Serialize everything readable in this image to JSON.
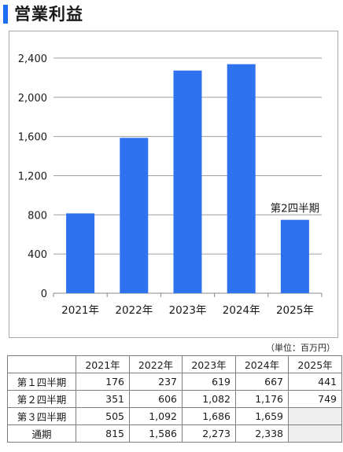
{
  "title": "営業利益",
  "unit_note": "（単位：百万円）",
  "chart_data": {
    "type": "bar",
    "categories": [
      "2021年",
      "2022年",
      "2023年",
      "2024年",
      "2025年"
    ],
    "values": [
      815,
      1586,
      2273,
      2338,
      749
    ],
    "ylim": [
      0,
      2600
    ],
    "yticks": [
      0,
      400,
      800,
      1200,
      1600,
      2000,
      2400
    ],
    "ytick_labels": [
      "0",
      "400",
      "800",
      "1,200",
      "1,600",
      "2,000",
      "2,400"
    ],
    "annotations": [
      {
        "category": "2025年",
        "text": "第2四半期"
      }
    ],
    "bar_color": "#2e72f0",
    "grid": true,
    "title": "",
    "xlabel": "",
    "ylabel": ""
  },
  "table": {
    "headers": [
      "",
      "2021年",
      "2022年",
      "2023年",
      "2024年",
      "2025年"
    ],
    "rows": [
      {
        "label": "第１四半期",
        "cells": [
          "176",
          "237",
          "619",
          "667",
          "441"
        ]
      },
      {
        "label": "第２四半期",
        "cells": [
          "351",
          "606",
          "1,082",
          "1,176",
          "749"
        ]
      },
      {
        "label": "第３四半期",
        "cells": [
          "505",
          "1,092",
          "1,686",
          "1,659",
          ""
        ]
      },
      {
        "label": "通期",
        "cells": [
          "815",
          "1,586",
          "2,273",
          "2,338",
          ""
        ]
      }
    ]
  }
}
